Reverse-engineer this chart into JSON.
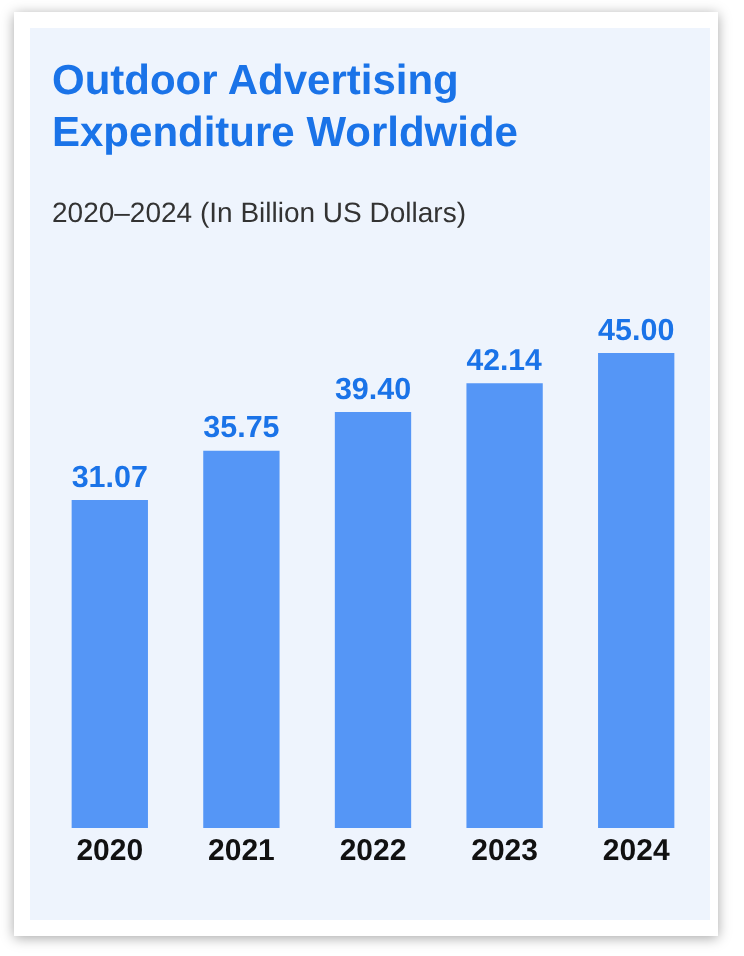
{
  "chart_data": {
    "type": "bar",
    "title": "Outdoor Advertising Expenditure Worldwide",
    "subtitle": "2020–2024 (In Billion US Dollars)",
    "categories": [
      "2020",
      "2021",
      "2022",
      "2023",
      "2024"
    ],
    "values": [
      31.07,
      35.75,
      39.4,
      42.14,
      45.0
    ],
    "value_labels": [
      "31.07",
      "35.75",
      "39.40",
      "42.14",
      "45.00"
    ],
    "color": "#5596f6",
    "grid": false,
    "legend": false
  }
}
